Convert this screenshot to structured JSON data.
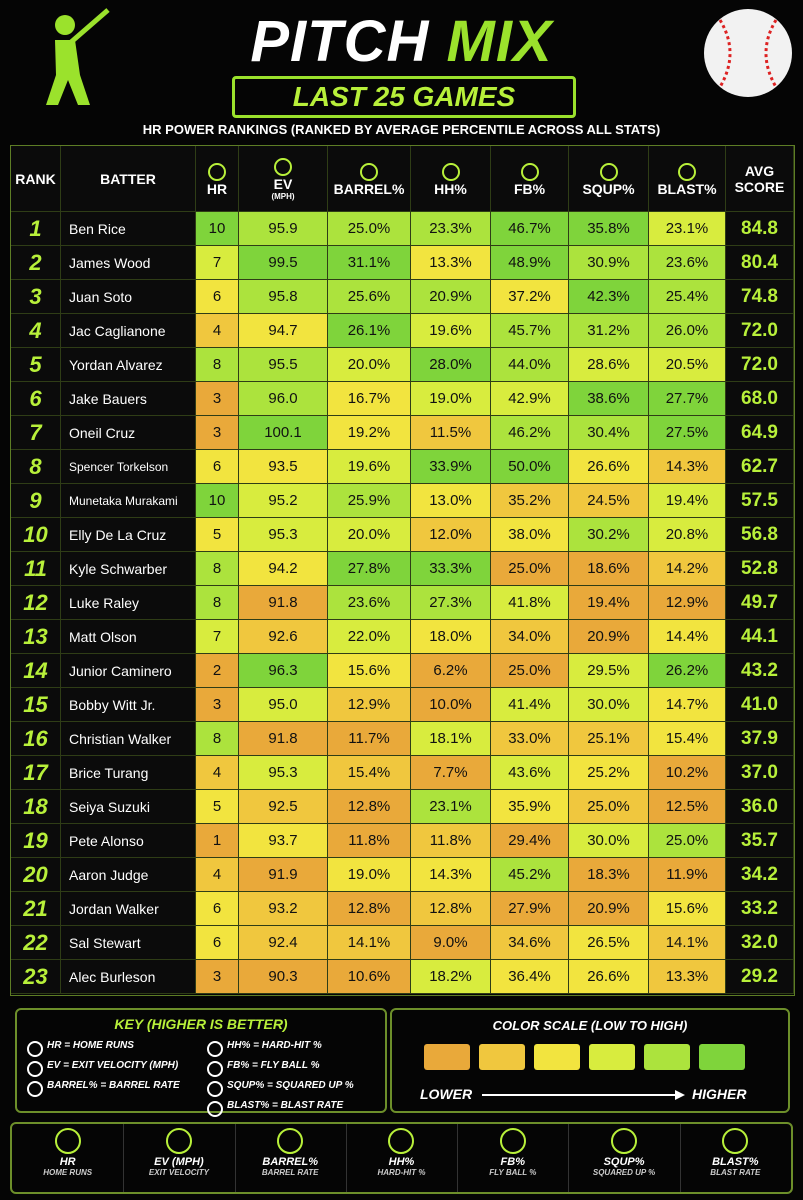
{
  "header": {
    "title_part1": "PITCH",
    "title_part2": "MIX",
    "banner": "LAST 25 GAMES",
    "subtitle": "HR POWER RANKINGS  (RANKED BY AVERAGE PERCENTILE ACROSS ALL STATS)"
  },
  "table": {
    "columns": [
      {
        "label": "RANK"
      },
      {
        "label": "BATTER"
      },
      {
        "label": "HR"
      },
      {
        "label": "EV",
        "sub": "(MPH)"
      },
      {
        "label": "BARREL%"
      },
      {
        "label": "HH%"
      },
      {
        "label": "FB%"
      },
      {
        "label": "SQUP%"
      },
      {
        "label": "BLAST%"
      },
      {
        "label": "AVG SCORE"
      }
    ],
    "heat_columns": [
      2,
      3,
      4,
      5,
      6,
      7,
      8
    ],
    "rows": [
      [
        "1",
        "Ben Rice",
        "10",
        "95.9",
        "25.0%",
        "23.3%",
        "46.7%",
        "35.8%",
        "23.1%",
        "84.8"
      ],
      [
        "2",
        "James Wood",
        "7",
        "99.5",
        "31.1%",
        "13.3%",
        "48.9%",
        "30.9%",
        "23.6%",
        "80.4"
      ],
      [
        "3",
        "Juan Soto",
        "6",
        "95.8",
        "25.6%",
        "20.9%",
        "37.2%",
        "42.3%",
        "25.4%",
        "74.8"
      ],
      [
        "4",
        "Jac Caglianone",
        "4",
        "94.7",
        "26.1%",
        "19.6%",
        "45.7%",
        "31.2%",
        "26.0%",
        "72.0"
      ],
      [
        "5",
        "Yordan Alvarez",
        "8",
        "95.5",
        "20.0%",
        "28.0%",
        "44.0%",
        "28.6%",
        "20.5%",
        "72.0"
      ],
      [
        "6",
        "Jake Bauers",
        "3",
        "96.0",
        "16.7%",
        "19.0%",
        "42.9%",
        "38.6%",
        "27.7%",
        "68.0"
      ],
      [
        "7",
        "Oneil Cruz",
        "3",
        "100.1",
        "19.2%",
        "11.5%",
        "46.2%",
        "30.4%",
        "27.5%",
        "64.9"
      ],
      [
        "8",
        "Spencer Torkelson",
        "6",
        "93.5",
        "19.6%",
        "33.9%",
        "50.0%",
        "26.6%",
        "14.3%",
        "62.7"
      ],
      [
        "9",
        "Munetaka Murakami",
        "10",
        "95.2",
        "25.9%",
        "13.0%",
        "35.2%",
        "24.5%",
        "19.4%",
        "57.5"
      ],
      [
        "10",
        "Elly De La Cruz",
        "5",
        "95.3",
        "20.0%",
        "12.0%",
        "38.0%",
        "30.2%",
        "20.8%",
        "56.8"
      ],
      [
        "11",
        "Kyle Schwarber",
        "8",
        "94.2",
        "27.8%",
        "33.3%",
        "25.0%",
        "18.6%",
        "14.2%",
        "52.8"
      ],
      [
        "12",
        "Luke Raley",
        "8",
        "91.8",
        "23.6%",
        "27.3%",
        "41.8%",
        "19.4%",
        "12.9%",
        "49.7"
      ],
      [
        "13",
        "Matt Olson",
        "7",
        "92.6",
        "22.0%",
        "18.0%",
        "34.0%",
        "20.9%",
        "14.4%",
        "44.1"
      ],
      [
        "14",
        "Junior Caminero",
        "2",
        "96.3",
        "15.6%",
        "6.2%",
        "25.0%",
        "29.5%",
        "26.2%",
        "43.2"
      ],
      [
        "15",
        "Bobby Witt Jr.",
        "3",
        "95.0",
        "12.9%",
        "10.0%",
        "41.4%",
        "30.0%",
        "14.7%",
        "41.0"
      ],
      [
        "16",
        "Christian Walker",
        "8",
        "91.8",
        "11.7%",
        "18.1%",
        "33.0%",
        "25.1%",
        "15.4%",
        "37.9"
      ],
      [
        "17",
        "Brice Turang",
        "4",
        "95.3",
        "15.4%",
        "7.7%",
        "43.6%",
        "25.2%",
        "10.2%",
        "37.0"
      ],
      [
        "18",
        "Seiya Suzuki",
        "5",
        "92.5",
        "12.8%",
        "23.1%",
        "35.9%",
        "25.0%",
        "12.5%",
        "36.0"
      ],
      [
        "19",
        "Pete Alonso",
        "1",
        "93.7",
        "11.8%",
        "11.8%",
        "29.4%",
        "30.0%",
        "25.0%",
        "35.7"
      ],
      [
        "20",
        "Aaron Judge",
        "4",
        "91.9",
        "19.0%",
        "14.3%",
        "45.2%",
        "18.3%",
        "11.9%",
        "34.2"
      ],
      [
        "21",
        "Jordan Walker",
        "6",
        "93.2",
        "12.8%",
        "12.8%",
        "27.9%",
        "20.9%",
        "15.6%",
        "33.2"
      ],
      [
        "22",
        "Sal Stewart",
        "6",
        "92.4",
        "14.1%",
        "9.0%",
        "34.6%",
        "26.5%",
        "14.1%",
        "32.0"
      ],
      [
        "23",
        "Alec Burleson",
        "3",
        "90.3",
        "10.6%",
        "18.2%",
        "36.4%",
        "26.6%",
        "13.3%",
        "29.2"
      ]
    ]
  },
  "key": {
    "title": "KEY (HIGHER IS BETTER)",
    "items": [
      "HR = HOME RUNS",
      "EV = EXIT VELOCITY (MPH)",
      "BARREL% = BARREL RATE",
      "HH% = HARD-HIT %",
      "FB% = FLY BALL %",
      "SQUP% = SQUARED UP %",
      "BLAST% = BLAST RATE"
    ]
  },
  "color_scale": {
    "title": "COLOR SCALE (LOW TO HIGH)",
    "colors": [
      "#e9a93a",
      "#f0c73e",
      "#f2e43f",
      "#d8ec3e",
      "#ace33d",
      "#7fd43b"
    ],
    "low_label": "LOWER",
    "high_label": "HIGHER"
  },
  "footer": [
    {
      "label": "HR",
      "sub": "HOME RUNS"
    },
    {
      "label": "EV (MPH)",
      "sub": "EXIT VELOCITY"
    },
    {
      "label": "BARREL%",
      "sub": "BARREL RATE"
    },
    {
      "label": "HH%",
      "sub": "HARD-HIT %"
    },
    {
      "label": "FB%",
      "sub": "FLY BALL %"
    },
    {
      "label": "SQUP%",
      "sub": "SQUARED UP %"
    },
    {
      "label": "BLAST%",
      "sub": "BLAST RATE"
    }
  ]
}
